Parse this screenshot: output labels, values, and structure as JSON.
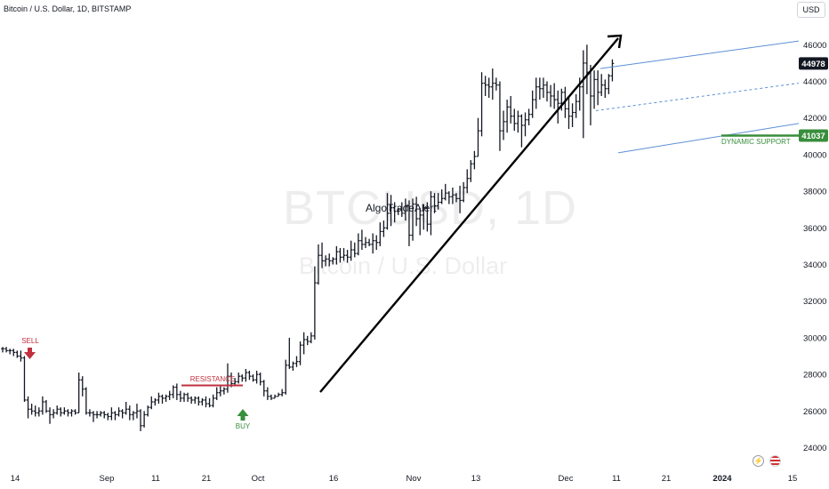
{
  "header": {
    "title": "Bitcoin / U.S. Dollar, 1D, BITSTAMP"
  },
  "currency_button": "USD",
  "watermark": {
    "ticker": "BTCUSD, 1D",
    "name": "Bitcoin / U.S. Dollar"
  },
  "annotations": {
    "sell": "SELL",
    "buy": "BUY",
    "resistance": "RESISTANCE",
    "dynamic_support": "DYNAMIC SUPPORT",
    "brand": "AlgoTradeAlert"
  },
  "price_badges": {
    "last": "44978",
    "support": "41037"
  },
  "colors": {
    "sell": "#c2303f",
    "buy": "#388e3c",
    "channel": "#5b8fd6",
    "last_badge": "#131722",
    "support_badge": "#388e3c"
  },
  "icons": [
    "lightning-icon",
    "us-flag-icon"
  ],
  "chart_data": {
    "type": "bar",
    "title": "Bitcoin / U.S. Dollar, 1D, BITSTAMP",
    "xlabel": "",
    "ylabel": "",
    "ylim": [
      23000,
      47000
    ],
    "y_ticks": [
      24000,
      26000,
      28000,
      30000,
      32000,
      34000,
      36000,
      38000,
      40000,
      42000,
      44000,
      46000
    ],
    "x_ticks": [
      "14",
      "Sep",
      "11",
      "21",
      "Oct",
      "16",
      "Nov",
      "13",
      "Dec",
      "11",
      "21",
      "2024",
      "15"
    ],
    "start_date": "2023-08-14",
    "series": [
      {
        "values": [
          [
            29400,
            29500,
            29200,
            29400
          ],
          [
            29400,
            29500,
            29200,
            29300
          ],
          [
            29300,
            29400,
            29100,
            29300
          ],
          [
            29300,
            29400,
            29000,
            29200
          ],
          [
            29200,
            29300,
            28900,
            29000
          ],
          [
            29000,
            29300,
            28700,
            28900
          ],
          [
            28900,
            29000,
            26500,
            26600
          ],
          [
            26600,
            26800,
            25600,
            26100
          ],
          [
            26100,
            26400,
            25800,
            26000
          ],
          [
            26000,
            26300,
            25700,
            25900
          ],
          [
            25900,
            26200,
            25700,
            26000
          ],
          [
            26000,
            26800,
            25800,
            26500
          ],
          [
            26500,
            26600,
            25900,
            26000
          ],
          [
            26000,
            26200,
            25300,
            25800
          ],
          [
            25800,
            26100,
            25600,
            25900
          ],
          [
            25900,
            26300,
            25800,
            26100
          ],
          [
            26100,
            26200,
            25700,
            25900
          ],
          [
            25900,
            26200,
            25800,
            26000
          ],
          [
            26000,
            26100,
            25700,
            25900
          ],
          [
            25900,
            26100,
            25700,
            26000
          ],
          [
            26000,
            26100,
            25800,
            25900
          ],
          [
            25900,
            28100,
            25900,
            27700
          ],
          [
            27700,
            27900,
            26800,
            27200
          ],
          [
            27200,
            27300,
            25800,
            25900
          ],
          [
            25900,
            26100,
            25700,
            25900
          ],
          [
            25900,
            26000,
            25400,
            25800
          ],
          [
            25800,
            26000,
            25600,
            25800
          ],
          [
            25800,
            26000,
            25700,
            25900
          ],
          [
            25900,
            26000,
            25600,
            25800
          ],
          [
            25800,
            25900,
            25500,
            25700
          ],
          [
            25700,
            26200,
            25500,
            25900
          ],
          [
            25900,
            26000,
            25500,
            25800
          ],
          [
            25800,
            26200,
            25700,
            26000
          ],
          [
            26000,
            26100,
            25600,
            25900
          ],
          [
            25900,
            26500,
            25800,
            26100
          ],
          [
            26100,
            26300,
            25500,
            25800
          ],
          [
            25800,
            26000,
            25500,
            25900
          ],
          [
            25900,
            26400,
            25600,
            26000
          ],
          [
            26000,
            26100,
            24900,
            25200
          ],
          [
            25200,
            26000,
            25100,
            25800
          ],
          [
            25800,
            26300,
            25700,
            26200
          ],
          [
            26200,
            26800,
            26100,
            26500
          ],
          [
            26500,
            26700,
            26300,
            26600
          ],
          [
            26600,
            27000,
            26400,
            26800
          ],
          [
            26800,
            26900,
            26400,
            26700
          ],
          [
            26700,
            26900,
            26500,
            26800
          ],
          [
            26800,
            27100,
            26600,
            26900
          ],
          [
            26900,
            27400,
            26700,
            27300
          ],
          [
            27300,
            27500,
            26600,
            26900
          ],
          [
            26900,
            27100,
            26500,
            26700
          ],
          [
            26700,
            27000,
            26500,
            26900
          ],
          [
            26900,
            27000,
            26500,
            26700
          ],
          [
            26700,
            26800,
            26400,
            26600
          ],
          [
            26600,
            26800,
            26400,
            26700
          ],
          [
            26700,
            26800,
            26300,
            26500
          ],
          [
            26500,
            26700,
            26300,
            26600
          ],
          [
            26600,
            26800,
            26200,
            26400
          ],
          [
            26400,
            26700,
            26200,
            26300
          ],
          [
            26300,
            26900,
            26200,
            26700
          ],
          [
            26700,
            27300,
            26600,
            27000
          ],
          [
            27000,
            27400,
            26800,
            27100
          ],
          [
            27100,
            27300,
            26900,
            27200
          ],
          [
            27200,
            28600,
            27000,
            27900
          ],
          [
            27900,
            28100,
            27300,
            27500
          ],
          [
            27500,
            27800,
            27400,
            27600
          ],
          [
            27600,
            28100,
            27500,
            27900
          ],
          [
            27900,
            28000,
            27600,
            27800
          ],
          [
            27800,
            28300,
            27600,
            28100
          ],
          [
            28100,
            28200,
            27700,
            27900
          ],
          [
            27900,
            28000,
            27600,
            27700
          ],
          [
            27700,
            28200,
            27500,
            28000
          ],
          [
            28000,
            28100,
            27400,
            27600
          ],
          [
            27600,
            27700,
            26800,
            27100
          ],
          [
            27100,
            27300,
            26600,
            26800
          ],
          [
            26800,
            26900,
            26600,
            26700
          ],
          [
            26700,
            26900,
            26700,
            26800
          ],
          [
            26800,
            27000,
            26800,
            26900
          ],
          [
            26900,
            27200,
            26800,
            27000
          ],
          [
            27000,
            28800,
            26900,
            28500
          ],
          [
            28500,
            30000,
            28300,
            28400
          ],
          [
            28400,
            28700,
            28200,
            28600
          ],
          [
            28600,
            29000,
            28400,
            28700
          ],
          [
            28700,
            29800,
            28500,
            29600
          ],
          [
            29600,
            30300,
            29100,
            29900
          ],
          [
            29900,
            30100,
            29600,
            29800
          ],
          [
            29800,
            30300,
            29700,
            30100
          ],
          [
            30100,
            33900,
            29900,
            33000
          ],
          [
            33000,
            35100,
            32900,
            34500
          ],
          [
            34500,
            35200,
            33800,
            34200
          ],
          [
            34200,
            34500,
            33900,
            34300
          ],
          [
            34300,
            34600,
            33900,
            34200
          ],
          [
            34200,
            34400,
            34000,
            34300
          ],
          [
            34300,
            35000,
            34000,
            34700
          ],
          [
            34700,
            34900,
            34100,
            34400
          ],
          [
            34400,
            34900,
            34200,
            34500
          ],
          [
            34500,
            34800,
            34100,
            34400
          ],
          [
            34400,
            35300,
            34200,
            34800
          ],
          [
            34800,
            35200,
            34400,
            34600
          ],
          [
            34600,
            35700,
            34500,
            35300
          ],
          [
            35300,
            35900,
            34800,
            35100
          ],
          [
            35100,
            35500,
            34900,
            35200
          ],
          [
            35200,
            35400,
            35000,
            35100
          ],
          [
            35100,
            35700,
            34600,
            35300
          ],
          [
            35300,
            35600,
            34800,
            35200
          ],
          [
            35200,
            36300,
            35000,
            35800
          ],
          [
            35800,
            36400,
            35500,
            36000
          ],
          [
            36000,
            37900,
            35900,
            36800
          ],
          [
            36800,
            37800,
            36100,
            37100
          ],
          [
            37100,
            37400,
            36300,
            36900
          ],
          [
            36900,
            37100,
            36700,
            37000
          ],
          [
            37000,
            37400,
            36600,
            36800
          ],
          [
            36800,
            37600,
            36400,
            37200
          ],
          [
            37200,
            37500,
            35000,
            35600
          ],
          [
            35600,
            37600,
            35300,
            37300
          ],
          [
            37300,
            37700,
            36100,
            36500
          ],
          [
            36500,
            37100,
            35600,
            36700
          ],
          [
            36700,
            37300,
            35900,
            37100
          ],
          [
            37100,
            37400,
            35800,
            36200
          ],
          [
            36200,
            38000,
            35600,
            37700
          ],
          [
            37700,
            37900,
            36800,
            37200
          ],
          [
            37200,
            37900,
            37000,
            37400
          ],
          [
            37400,
            38100,
            37300,
            37600
          ],
          [
            37600,
            38400,
            37500,
            37900
          ],
          [
            37900,
            38000,
            37300,
            37700
          ],
          [
            37700,
            38200,
            37300,
            37800
          ],
          [
            37800,
            37900,
            37400,
            37600
          ],
          [
            37600,
            38300,
            36800,
            37500
          ],
          [
            37500,
            38500,
            37400,
            38200
          ],
          [
            38200,
            39200,
            37900,
            38700
          ],
          [
            38700,
            39700,
            38500,
            39500
          ],
          [
            39500,
            40200,
            39200,
            39900
          ],
          [
            39900,
            42000,
            39900,
            41300
          ],
          [
            41300,
            44500,
            41000,
            43900
          ],
          [
            43900,
            44300,
            43200,
            43800
          ],
          [
            43800,
            44200,
            43100,
            43700
          ],
          [
            43700,
            44700,
            43000,
            43900
          ],
          [
            43900,
            44200,
            43500,
            43800
          ],
          [
            43800,
            44000,
            40200,
            41300
          ],
          [
            41300,
            42400,
            40800,
            41800
          ],
          [
            41800,
            43000,
            41200,
            42600
          ],
          [
            42600,
            43200,
            41700,
            42100
          ],
          [
            42100,
            42500,
            41300,
            41700
          ],
          [
            41700,
            42400,
            41200,
            42100
          ],
          [
            42100,
            42200,
            40400,
            41600
          ],
          [
            41600,
            42300,
            41000,
            41900
          ],
          [
            41900,
            42500,
            41600,
            42200
          ],
          [
            42200,
            43500,
            42000,
            43000
          ],
          [
            43000,
            44200,
            42500,
            43700
          ],
          [
            43700,
            44200,
            43000,
            43600
          ],
          [
            43600,
            44200,
            43100,
            43800
          ],
          [
            43800,
            44000,
            42900,
            43400
          ],
          [
            43400,
            43800,
            42600,
            43200
          ],
          [
            43200,
            43900,
            42500,
            43000
          ],
          [
            43000,
            43500,
            41700,
            42800
          ],
          [
            42800,
            43600,
            42400,
            43400
          ],
          [
            43400,
            43700,
            42000,
            42500
          ],
          [
            42500,
            43200,
            41400,
            42100
          ],
          [
            42100,
            42800,
            41500,
            42300
          ],
          [
            42300,
            43300,
            42000,
            42900
          ],
          [
            42900,
            44200,
            42400,
            43700
          ],
          [
            43700,
            45700,
            40900,
            45000
          ],
          [
            45000,
            46000,
            43300,
            44500
          ],
          [
            44500,
            44900,
            41600,
            43200
          ],
          [
            43200,
            44600,
            42500,
            44100
          ],
          [
            44100,
            44600,
            42700,
            43400
          ],
          [
            43400,
            44400,
            43200,
            43800
          ],
          [
            43800,
            44100,
            43100,
            43600
          ],
          [
            43600,
            44400,
            43300,
            44300
          ],
          [
            44300,
            45200,
            44000,
            44978
          ]
        ]
      }
    ],
    "annotations": [
      {
        "text": "SELL",
        "date": "2023-08-19",
        "price": 28900
      },
      {
        "text": "RESISTANCE",
        "from": "2023-09-18",
        "to": "2023-09-28",
        "price": 27400
      },
      {
        "text": "BUY",
        "date": "2023-09-28",
        "price": 26200
      },
      {
        "text": "DYNAMIC SUPPORT",
        "price": 41037
      },
      {
        "text": "AlgoTradeAlert"
      }
    ]
  }
}
